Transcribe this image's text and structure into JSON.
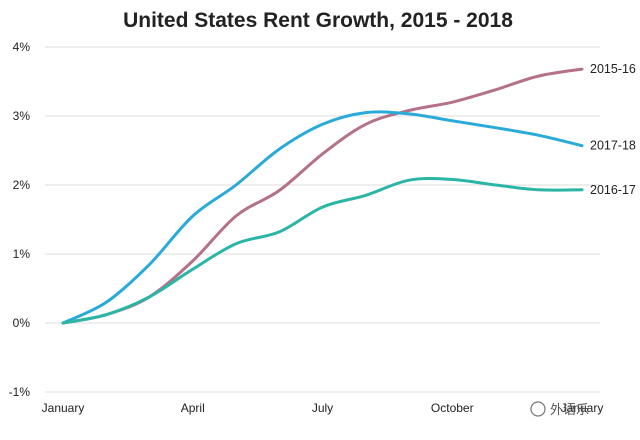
{
  "chart_data": {
    "type": "line",
    "title": "United States Rent Growth, 2015 - 2018",
    "xlabel": "",
    "ylabel": "",
    "x_tick_labels": [
      "January",
      "April",
      "July",
      "October",
      "January"
    ],
    "y_tick_labels": [
      "4%",
      "3%",
      "2%",
      "1%",
      "0%",
      "-1%"
    ],
    "y_tick_values": [
      4,
      3,
      2,
      1,
      0,
      -1
    ],
    "ylim": [
      -1,
      4
    ],
    "xlim": [
      0,
      12
    ],
    "grid": "horizontal",
    "series": [
      {
        "name": "2015-16",
        "color": "#b5708a",
        "points": [
          [
            0,
            0
          ],
          [
            1,
            0.12
          ],
          [
            2,
            0.38
          ],
          [
            3,
            0.9
          ],
          [
            4,
            1.55
          ],
          [
            5,
            1.92
          ],
          [
            6,
            2.45
          ],
          [
            7,
            2.88
          ],
          [
            8,
            3.08
          ],
          [
            9,
            3.2
          ],
          [
            10,
            3.38
          ],
          [
            11,
            3.58
          ],
          [
            12,
            3.68
          ]
        ]
      },
      {
        "name": "2017-18",
        "color": "#29aad8",
        "points": [
          [
            0,
            0
          ],
          [
            1,
            0.3
          ],
          [
            2,
            0.85
          ],
          [
            3,
            1.55
          ],
          [
            4,
            2.0
          ],
          [
            5,
            2.52
          ],
          [
            6,
            2.88
          ],
          [
            7,
            3.05
          ],
          [
            8,
            3.03
          ],
          [
            9,
            2.93
          ],
          [
            10,
            2.83
          ],
          [
            11,
            2.72
          ],
          [
            12,
            2.57
          ]
        ]
      },
      {
        "name": "2016-17",
        "color": "#2bb5a6",
        "points": [
          [
            0,
            0
          ],
          [
            1,
            0.12
          ],
          [
            2,
            0.38
          ],
          [
            3,
            0.78
          ],
          [
            4,
            1.15
          ],
          [
            5,
            1.32
          ],
          [
            6,
            1.68
          ],
          [
            7,
            1.85
          ],
          [
            8,
            2.07
          ],
          [
            9,
            2.08
          ],
          [
            10,
            2.0
          ],
          [
            11,
            1.93
          ],
          [
            12,
            1.93
          ]
        ]
      }
    ]
  },
  "watermark": "外语乐"
}
